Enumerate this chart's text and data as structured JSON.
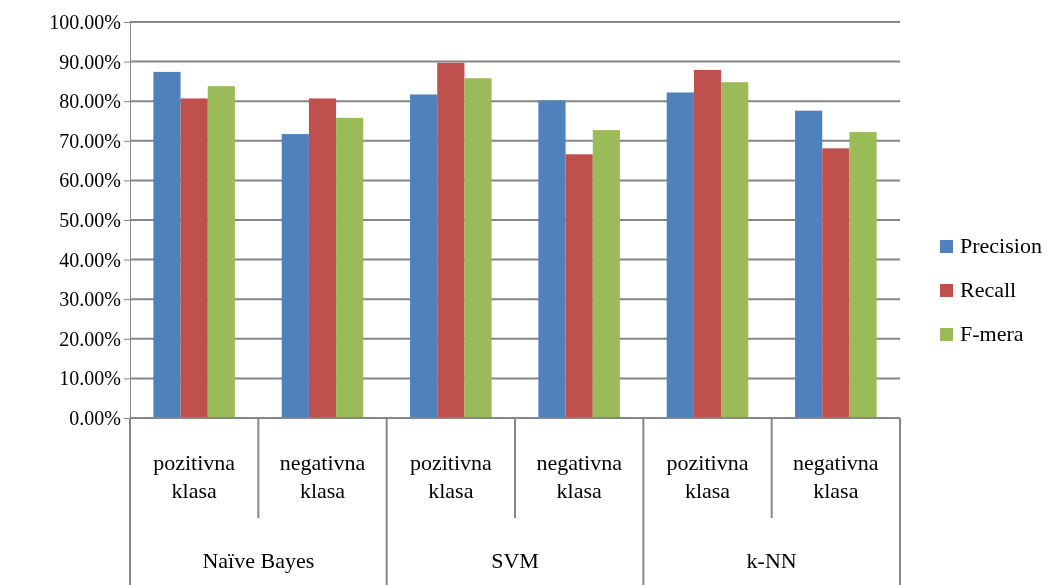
{
  "chart_data": {
    "type": "bar",
    "categories": [
      "pozitivna klasa",
      "negativna klasa",
      "pozitivna klasa",
      "negativna klasa",
      "pozitivna klasa",
      "negativna klasa"
    ],
    "series": [
      {
        "name": "Precision",
        "color": "#4f81bd",
        "values": [
          87.4,
          71.7,
          81.7,
          80.2,
          82.2,
          77.6
        ]
      },
      {
        "name": "Recall",
        "color": "#c0504d",
        "values": [
          80.7,
          80.7,
          89.7,
          66.6,
          87.9,
          68.1
        ]
      },
      {
        "name": "F-mera",
        "color": "#9bbb59",
        "values": [
          83.8,
          75.8,
          85.8,
          72.7,
          84.8,
          72.2
        ]
      }
    ],
    "annotations": [
      "Naïve Bayes",
      "SVM",
      "k-NN"
    ],
    "ylim": [
      0,
      100
    ],
    "yticks": [
      {
        "value": 0,
        "label": "0.00%"
      },
      {
        "value": 10,
        "label": "10.00%"
      },
      {
        "value": 20,
        "label": "20.00%"
      },
      {
        "value": 30,
        "label": "30.00%"
      },
      {
        "value": 40,
        "label": "40.00%"
      },
      {
        "value": 50,
        "label": "50.00%"
      },
      {
        "value": 60,
        "label": "60.00%"
      },
      {
        "value": 70,
        "label": "70.00%"
      },
      {
        "value": 80,
        "label": "80.00%"
      },
      {
        "value": 90,
        "label": "90.00%"
      },
      {
        "value": 100,
        "label": "100.00%"
      }
    ],
    "grid": "y",
    "legend": "right"
  }
}
